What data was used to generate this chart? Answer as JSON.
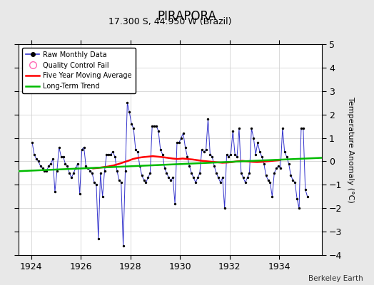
{
  "title": "PIRAPORA",
  "subtitle": "17.300 S, 44.950 W (Brazil)",
  "ylabel": "Temperature Anomaly (°C)",
  "credit": "Berkeley Earth",
  "xlim": [
    1923.5,
    1935.7
  ],
  "ylim": [
    -4,
    5
  ],
  "yticks": [
    -4,
    -3,
    -2,
    -1,
    0,
    1,
    2,
    3,
    4,
    5
  ],
  "xticks": [
    1924,
    1926,
    1928,
    1930,
    1932,
    1934
  ],
  "bg_color": "#e8e8e8",
  "plot_bg_color": "#ffffff",
  "raw_color": "#3333cc",
  "dot_color": "#000000",
  "ma_color": "#ff0000",
  "trend_color": "#00bb00",
  "qc_color": "#ff69b4",
  "raw_monthly": [
    [
      1924.042,
      0.8
    ],
    [
      1924.125,
      0.3
    ],
    [
      1924.208,
      0.1
    ],
    [
      1924.292,
      0.0
    ],
    [
      1924.375,
      -0.2
    ],
    [
      1924.458,
      -0.3
    ],
    [
      1924.542,
      -0.4
    ],
    [
      1924.625,
      -0.4
    ],
    [
      1924.708,
      -0.2
    ],
    [
      1924.792,
      -0.1
    ],
    [
      1924.875,
      0.1
    ],
    [
      1924.958,
      -1.3
    ],
    [
      1925.042,
      -0.4
    ],
    [
      1925.125,
      0.6
    ],
    [
      1925.208,
      0.2
    ],
    [
      1925.292,
      0.2
    ],
    [
      1925.375,
      -0.1
    ],
    [
      1925.458,
      -0.2
    ],
    [
      1925.542,
      -0.5
    ],
    [
      1925.625,
      -0.7
    ],
    [
      1925.708,
      -0.5
    ],
    [
      1925.792,
      -0.3
    ],
    [
      1925.875,
      -0.1
    ],
    [
      1925.958,
      -1.4
    ],
    [
      1926.042,
      0.5
    ],
    [
      1926.125,
      0.6
    ],
    [
      1926.208,
      -0.2
    ],
    [
      1926.292,
      -0.3
    ],
    [
      1926.375,
      -0.4
    ],
    [
      1926.458,
      -0.5
    ],
    [
      1926.542,
      -0.9
    ],
    [
      1926.625,
      -1.0
    ],
    [
      1926.708,
      -3.3
    ],
    [
      1926.792,
      -0.5
    ],
    [
      1926.875,
      -1.5
    ],
    [
      1926.958,
      -0.4
    ],
    [
      1927.042,
      0.3
    ],
    [
      1927.125,
      0.3
    ],
    [
      1927.208,
      0.3
    ],
    [
      1927.292,
      0.4
    ],
    [
      1927.375,
      0.2
    ],
    [
      1927.458,
      -0.4
    ],
    [
      1927.542,
      -0.8
    ],
    [
      1927.625,
      -0.9
    ],
    [
      1927.708,
      -3.6
    ],
    [
      1927.792,
      -0.4
    ],
    [
      1927.875,
      2.5
    ],
    [
      1927.958,
      2.1
    ],
    [
      1928.042,
      1.6
    ],
    [
      1928.125,
      1.4
    ],
    [
      1928.208,
      0.5
    ],
    [
      1928.292,
      0.4
    ],
    [
      1928.375,
      -0.2
    ],
    [
      1928.458,
      -0.6
    ],
    [
      1928.542,
      -0.8
    ],
    [
      1928.625,
      -0.9
    ],
    [
      1928.708,
      -0.7
    ],
    [
      1928.792,
      -0.5
    ],
    [
      1928.875,
      1.5
    ],
    [
      1928.958,
      1.5
    ],
    [
      1929.042,
      1.5
    ],
    [
      1929.125,
      1.3
    ],
    [
      1929.208,
      0.5
    ],
    [
      1929.292,
      0.3
    ],
    [
      1929.375,
      -0.3
    ],
    [
      1929.458,
      -0.5
    ],
    [
      1929.542,
      -0.7
    ],
    [
      1929.625,
      -0.8
    ],
    [
      1929.708,
      -0.7
    ],
    [
      1929.792,
      -1.8
    ],
    [
      1929.875,
      0.8
    ],
    [
      1929.958,
      0.8
    ],
    [
      1930.042,
      1.0
    ],
    [
      1930.125,
      1.2
    ],
    [
      1930.208,
      0.6
    ],
    [
      1930.292,
      0.2
    ],
    [
      1930.375,
      -0.2
    ],
    [
      1930.458,
      -0.5
    ],
    [
      1930.542,
      -0.7
    ],
    [
      1930.625,
      -0.9
    ],
    [
      1930.708,
      -0.7
    ],
    [
      1930.792,
      -0.5
    ],
    [
      1930.875,
      0.5
    ],
    [
      1930.958,
      0.4
    ],
    [
      1931.042,
      0.5
    ],
    [
      1931.125,
      1.8
    ],
    [
      1931.208,
      0.3
    ],
    [
      1931.292,
      0.2
    ],
    [
      1931.375,
      -0.2
    ],
    [
      1931.458,
      -0.5
    ],
    [
      1931.542,
      -0.7
    ],
    [
      1931.625,
      -0.9
    ],
    [
      1931.708,
      -0.7
    ],
    [
      1931.792,
      -2.0
    ],
    [
      1931.875,
      0.3
    ],
    [
      1931.958,
      0.2
    ],
    [
      1932.042,
      0.3
    ],
    [
      1932.125,
      1.3
    ],
    [
      1932.208,
      0.3
    ],
    [
      1932.292,
      0.2
    ],
    [
      1932.375,
      1.4
    ],
    [
      1932.458,
      -0.5
    ],
    [
      1932.542,
      -0.7
    ],
    [
      1932.625,
      -0.9
    ],
    [
      1932.708,
      -0.7
    ],
    [
      1932.792,
      -0.5
    ],
    [
      1932.875,
      1.4
    ],
    [
      1932.958,
      1.0
    ],
    [
      1933.042,
      0.3
    ],
    [
      1933.125,
      0.8
    ],
    [
      1933.208,
      0.4
    ],
    [
      1933.292,
      0.2
    ],
    [
      1933.375,
      -0.1
    ],
    [
      1933.458,
      -0.6
    ],
    [
      1933.542,
      -0.8
    ],
    [
      1933.625,
      -0.9
    ],
    [
      1933.708,
      -1.5
    ],
    [
      1933.792,
      -0.5
    ],
    [
      1933.875,
      -0.3
    ],
    [
      1933.958,
      -0.2
    ],
    [
      1934.042,
      -0.3
    ],
    [
      1934.125,
      1.4
    ],
    [
      1934.208,
      0.4
    ],
    [
      1934.292,
      0.2
    ],
    [
      1934.375,
      -0.1
    ],
    [
      1934.458,
      -0.6
    ],
    [
      1934.542,
      -0.8
    ],
    [
      1934.625,
      -0.9
    ],
    [
      1934.708,
      -1.6
    ],
    [
      1934.792,
      -2.0
    ],
    [
      1934.875,
      1.4
    ],
    [
      1934.958,
      1.4
    ],
    [
      1935.042,
      -1.2
    ],
    [
      1935.125,
      -1.5
    ]
  ],
  "moving_avg": [
    [
      1926.5,
      -0.3
    ],
    [
      1926.7,
      -0.28
    ],
    [
      1926.9,
      -0.25
    ],
    [
      1927.1,
      -0.22
    ],
    [
      1927.3,
      -0.18
    ],
    [
      1927.5,
      -0.12
    ],
    [
      1927.7,
      -0.05
    ],
    [
      1927.9,
      0.02
    ],
    [
      1928.1,
      0.1
    ],
    [
      1928.3,
      0.15
    ],
    [
      1928.5,
      0.18
    ],
    [
      1928.7,
      0.2
    ],
    [
      1928.9,
      0.22
    ],
    [
      1929.1,
      0.2
    ],
    [
      1929.3,
      0.18
    ],
    [
      1929.5,
      0.15
    ],
    [
      1929.7,
      0.12
    ],
    [
      1929.9,
      0.1
    ],
    [
      1930.1,
      0.12
    ],
    [
      1930.3,
      0.1
    ],
    [
      1930.5,
      0.08
    ],
    [
      1930.7,
      0.05
    ],
    [
      1930.9,
      0.02
    ],
    [
      1931.1,
      0.0
    ],
    [
      1931.3,
      -0.02
    ],
    [
      1931.5,
      -0.04
    ],
    [
      1931.7,
      -0.06
    ],
    [
      1931.9,
      -0.05
    ],
    [
      1932.1,
      -0.03
    ],
    [
      1932.3,
      0.0
    ],
    [
      1932.5,
      0.02
    ],
    [
      1932.7,
      0.0
    ],
    [
      1932.9,
      -0.02
    ],
    [
      1933.1,
      -0.03
    ],
    [
      1933.3,
      -0.02
    ],
    [
      1933.5,
      0.0
    ],
    [
      1933.7,
      0.02
    ],
    [
      1933.9,
      0.04
    ],
    [
      1934.0,
      0.05
    ]
  ],
  "trend_x": [
    1923.5,
    1935.7
  ],
  "trend_y": [
    -0.42,
    0.15
  ]
}
